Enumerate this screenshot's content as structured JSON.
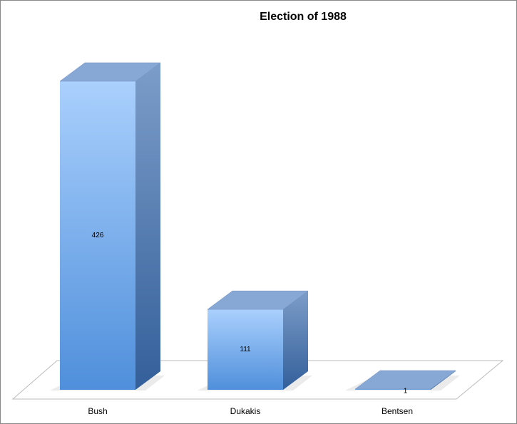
{
  "chart_data": {
    "type": "bar3d",
    "title": "Election of 1988",
    "categories": [
      "Bush",
      "Dukakis",
      "Bentsen"
    ],
    "values": [
      426,
      111,
      1
    ],
    "color": "#6fa6e8"
  }
}
